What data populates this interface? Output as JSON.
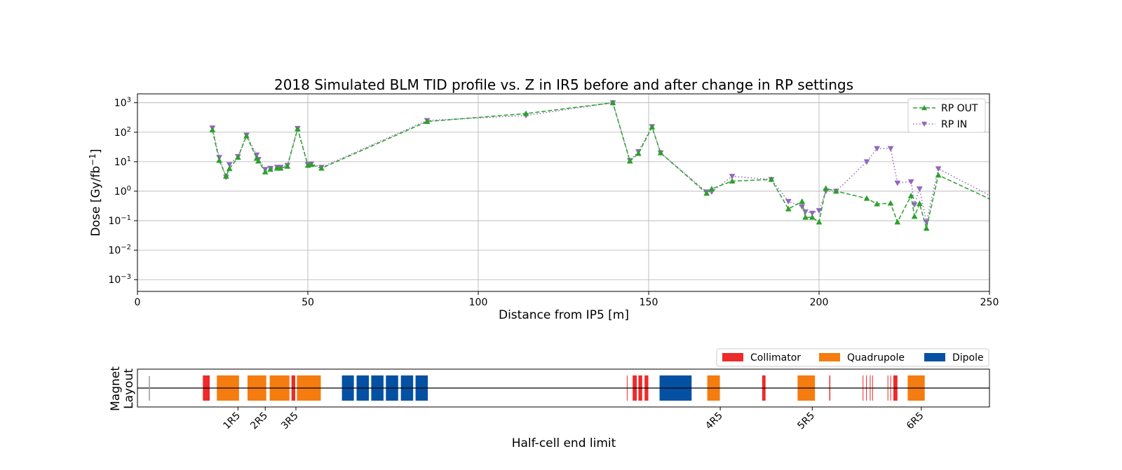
{
  "chart_data": [
    {
      "type": "line",
      "title": "2018 Simulated BLM TID profile vs. Z in IR5 before and after change in RP settings",
      "xlabel": "Distance from IP5 [m]",
      "ylabel": "Dose [Gy/fb",
      "ylabel_sup": "−1",
      "ylabel_end": "]",
      "yscale": "log",
      "xlim": [
        0,
        250
      ],
      "ylim": [
        0.0004,
        2000
      ],
      "grid": true,
      "legend_position": "top-right",
      "x_ticks": [
        0,
        50,
        100,
        150,
        200,
        250
      ],
      "x_tick_labels": [
        "0",
        "50",
        "100",
        "150",
        "200",
        "250"
      ],
      "y_ticks": [
        1000,
        100,
        10,
        1,
        0.1,
        0.01,
        0.001
      ],
      "y_tick_base": "10",
      "y_tick_exps": [
        "3",
        "2",
        "1",
        "0",
        "−1",
        "−2",
        "−3"
      ],
      "series": [
        {
          "name": "RP OUT",
          "color": "#2ca02c",
          "linestyle": "dashed",
          "marker": "triangle-up",
          "x": [
            22,
            24,
            26,
            27,
            29.5,
            32,
            35,
            35.5,
            37.5,
            39,
            41,
            42,
            44,
            47,
            50,
            51,
            54,
            85,
            114,
            139.5,
            144.5,
            147,
            151,
            153.5,
            167,
            168.5,
            174.5,
            186,
            191,
            195,
            196,
            198,
            200,
            202,
            205,
            214,
            217,
            221,
            223,
            227,
            228,
            229.5,
            231.5,
            235,
            250
          ],
          "y": [
            120,
            11,
            3.2,
            5.8,
            14,
            75,
            13,
            10.5,
            4.5,
            5.5,
            6,
            6,
            7,
            130,
            7.5,
            8,
            6,
            230,
            430,
            1000,
            10.5,
            19,
            150,
            20,
            0.85,
            1.2,
            2.2,
            2.5,
            0.25,
            0.45,
            0.13,
            0.13,
            0.09,
            1.25,
            1.0,
            0.57,
            0.37,
            0.39,
            0.09,
            0.7,
            0.14,
            0.38,
            0.055,
            3.5,
            0.55
          ]
        },
        {
          "name": "RP IN",
          "color": "#9467bd",
          "linestyle": "dotted",
          "marker": "triangle-down",
          "x": [
            22,
            24,
            26,
            27,
            29.5,
            32,
            35,
            35.5,
            37.5,
            39,
            41,
            42,
            44,
            47,
            50,
            51,
            54,
            85,
            114,
            139.5,
            144.5,
            147,
            151,
            153.5,
            167,
            168.5,
            174.5,
            186,
            191,
            195,
            196,
            198,
            200,
            202,
            205,
            214,
            217,
            221,
            223,
            227,
            228,
            229.5,
            231.5,
            235,
            250
          ],
          "y": [
            140,
            14,
            3.0,
            8.0,
            15,
            80,
            17,
            12,
            5.5,
            6,
            6.5,
            6.5,
            7.5,
            135,
            8,
            8.5,
            6.5,
            250,
            370,
            1000,
            11,
            22,
            155,
            20,
            0.95,
            0.95,
            3.2,
            2.5,
            0.45,
            0.3,
            0.2,
            0.18,
            0.22,
            1.0,
            1.0,
            10,
            28,
            28,
            1.9,
            2.1,
            0.35,
            1.2,
            0.09,
            5.8,
            0.72
          ]
        }
      ]
    },
    {
      "type": "layout",
      "ylabel_line1": "Magnet",
      "ylabel_line2": "Layout",
      "xlabel": "Half-cell end limit",
      "xlim": [
        0,
        250
      ],
      "legend_position": "top-right",
      "legend": [
        {
          "name": "Collimator",
          "color": "#ee2a2a"
        },
        {
          "name": "Quadrupole",
          "color": "#f57c0f"
        },
        {
          "name": "Dipole",
          "color": "#0451a3"
        }
      ],
      "half_cell_ticks": [
        {
          "label": "1R5",
          "x": 29.5
        },
        {
          "label": "2R5",
          "x": 37.5
        },
        {
          "label": "3R5",
          "x": 46.5
        },
        {
          "label": "4R5",
          "x": 171
        },
        {
          "label": "5R5",
          "x": 198
        },
        {
          "label": "6R5",
          "x": 230
        }
      ],
      "elements": [
        {
          "kind": "Collimator",
          "start": 19.2,
          "end": 21.2
        },
        {
          "kind": "Quadrupole",
          "start": 23.3,
          "end": 29.8
        },
        {
          "kind": "Quadrupole",
          "start": 32.3,
          "end": 37.8
        },
        {
          "kind": "Quadrupole",
          "start": 38.8,
          "end": 44.6
        },
        {
          "kind": "Collimator",
          "start": 45.2,
          "end": 46.3
        },
        {
          "kind": "Quadrupole",
          "start": 46.8,
          "end": 53.8
        },
        {
          "kind": "Dipole",
          "start": 60.0,
          "end": 63.5
        },
        {
          "kind": "Dipole",
          "start": 64.3,
          "end": 67.9
        },
        {
          "kind": "Dipole",
          "start": 68.6,
          "end": 72.2
        },
        {
          "kind": "Dipole",
          "start": 72.9,
          "end": 76.5
        },
        {
          "kind": "Dipole",
          "start": 77.3,
          "end": 80.9
        },
        {
          "kind": "Dipole",
          "start": 81.6,
          "end": 85.2
        },
        {
          "kind": "Collimator",
          "start": 143.6,
          "end": 143.8
        },
        {
          "kind": "Collimator",
          "start": 145.3,
          "end": 146.5
        },
        {
          "kind": "Collimator",
          "start": 147.0,
          "end": 148.1
        },
        {
          "kind": "Collimator",
          "start": 148.8,
          "end": 149.9
        },
        {
          "kind": "Dipole",
          "start": 153.2,
          "end": 162.6
        },
        {
          "kind": "Quadrupole",
          "start": 167.2,
          "end": 170.9
        },
        {
          "kind": "Collimator",
          "start": 183.3,
          "end": 184.3
        },
        {
          "kind": "Quadrupole",
          "start": 193.7,
          "end": 198.8
        },
        {
          "kind": "Collimator",
          "start": 203.0,
          "end": 203.3
        },
        {
          "kind": "Collimator",
          "start": 212.8,
          "end": 213.0
        },
        {
          "kind": "Collimator",
          "start": 213.8,
          "end": 214.0
        },
        {
          "kind": "Collimator",
          "start": 214.9,
          "end": 215.1
        },
        {
          "kind": "Collimator",
          "start": 215.6,
          "end": 215.8
        },
        {
          "kind": "Collimator",
          "start": 220.1,
          "end": 220.3
        },
        {
          "kind": "Collimator",
          "start": 220.9,
          "end": 221.1
        },
        {
          "kind": "Collimator",
          "start": 221.8,
          "end": 223.0
        },
        {
          "kind": "Quadrupole",
          "start": 226.0,
          "end": 231.0
        }
      ]
    }
  ]
}
